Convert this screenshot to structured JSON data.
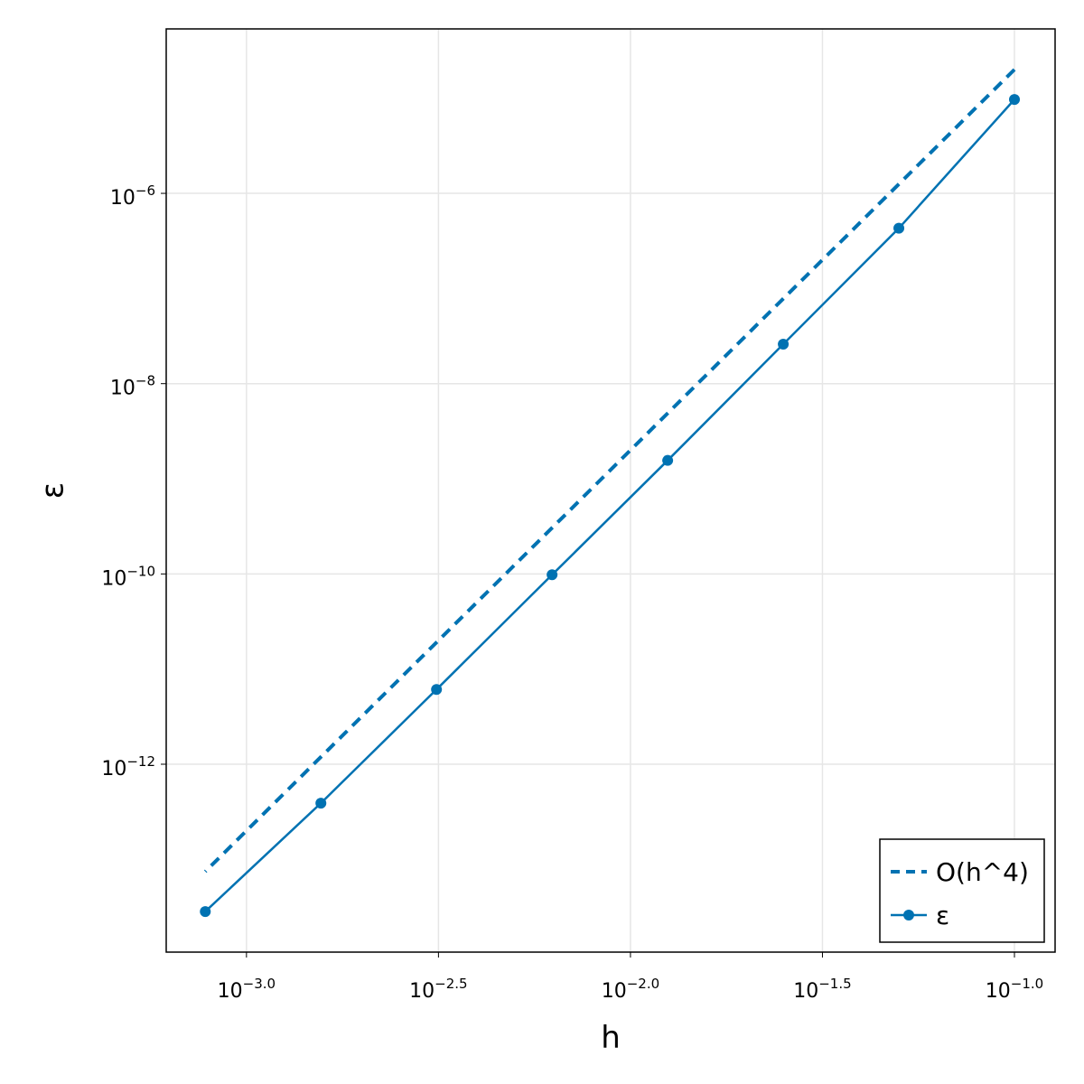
{
  "chart_data": {
    "type": "line",
    "x_label": "h",
    "y_label": "ε",
    "x": [
      0.1,
      0.05,
      0.025,
      0.0125,
      0.00625,
      0.003125,
      0.0015625,
      0.00078125
    ],
    "series": [
      {
        "name": "O(h^4)",
        "color": "#0072b2",
        "style": "dashed",
        "markers": false,
        "values": [
          2e-05,
          1.25e-06,
          7.8125e-08,
          4.8828e-09,
          3.0518e-10,
          1.9073e-11,
          1.1921e-12,
          7.4506e-14
        ]
      },
      {
        "name": "ε",
        "color": "#0072b2",
        "style": "solid",
        "markers": true,
        "values": [
          9.7e-06,
          4.3e-07,
          2.6e-08,
          1.56e-09,
          9.8e-11,
          6.1e-12,
          3.9e-13,
          2.83e-14
        ]
      }
    ],
    "xlog": true,
    "ylog": true,
    "xlim": [
      0.000618,
      0.1276
    ],
    "ylim": [
      1.06e-14,
      5.35e-05
    ],
    "xticks": [
      {
        "value": 0.001,
        "label": {
          "base": "10",
          "exponent": "−3.0"
        }
      },
      {
        "value": 0.0031623,
        "label": {
          "base": "10",
          "exponent": "−2.5"
        }
      },
      {
        "value": 0.01,
        "label": {
          "base": "10",
          "exponent": "−2.0"
        }
      },
      {
        "value": 0.031623,
        "label": {
          "base": "10",
          "exponent": "−1.5"
        }
      },
      {
        "value": 0.1,
        "label": {
          "base": "10",
          "exponent": "−1.0"
        }
      }
    ],
    "yticks": [
      {
        "value": 1e-12,
        "label": {
          "base": "10",
          "exponent": "−12"
        }
      },
      {
        "value": 1e-10,
        "label": {
          "base": "10",
          "exponent": "−10"
        }
      },
      {
        "value": 1e-08,
        "label": {
          "base": "10",
          "exponent": "−8"
        }
      },
      {
        "value": 1e-06,
        "label": {
          "base": "10",
          "exponent": "−6"
        }
      }
    ],
    "grid": true,
    "legend_position": "bottom-right"
  }
}
